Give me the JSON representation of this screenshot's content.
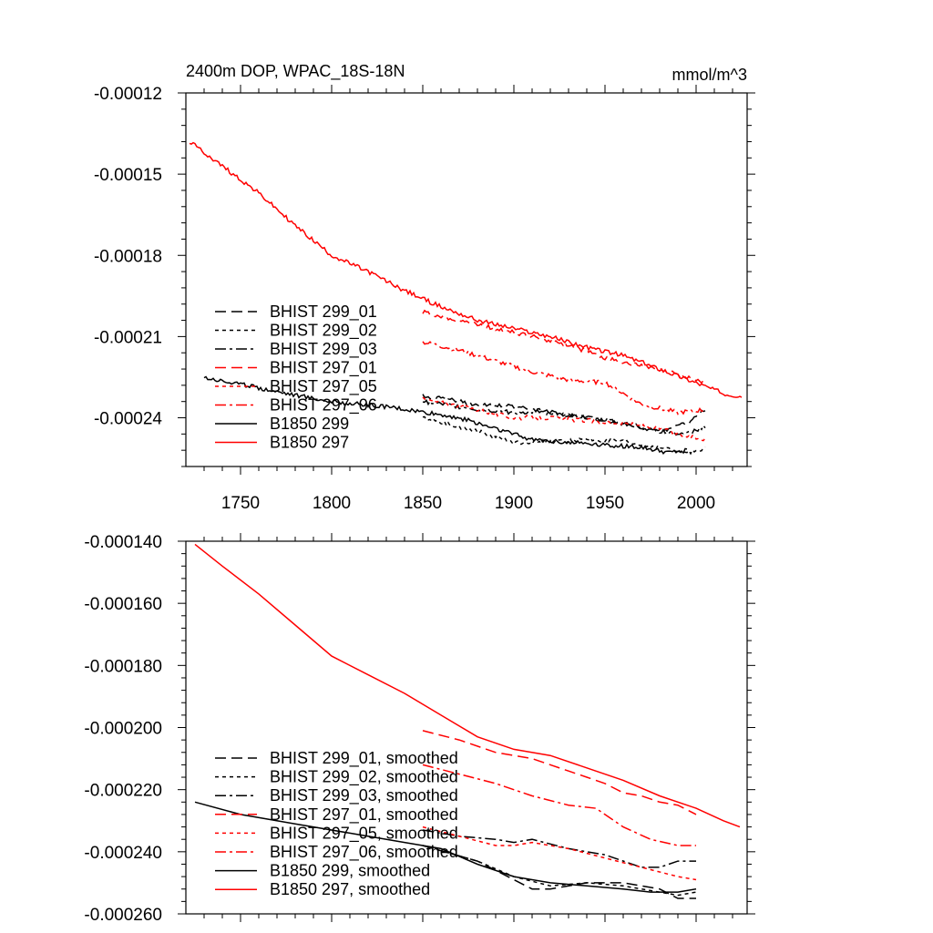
{
  "chart_data": [
    {
      "type": "line",
      "title": "2400m DOP, WPAC_18S-18N",
      "units": "mmol/m^3",
      "xlabel": "",
      "ylabel": "",
      "xlim": [
        1720,
        2028
      ],
      "ylim": [
        -0.000258,
        -0.00012
      ],
      "xticks": [
        1750,
        1800,
        1850,
        1900,
        1950,
        2000
      ],
      "xtick_labels": [
        "1750",
        "1800",
        "1850",
        "1900",
        "1950",
        "2000"
      ],
      "yticks": [
        -0.00012,
        -0.00015,
        -0.00018,
        -0.00021,
        -0.00024
      ],
      "ytick_labels": [
        "-0.00012",
        "-0.00015",
        "-0.00018",
        "-0.00021",
        "-0.00024"
      ],
      "legend_position": "lower-left",
      "noisy": true,
      "series": [
        {
          "name": "BHIST 299_01",
          "color": "#000000",
          "dash": "dash",
          "x": [
            1850,
            1880,
            1900,
            1920,
            1940,
            1960,
            1980,
            1995,
            2005
          ],
          "y": [
            -0.000232,
            -0.000235,
            -0.000236,
            -0.000238,
            -0.00024,
            -0.000242,
            -0.000245,
            -0.000242,
            -0.000237
          ]
        },
        {
          "name": "BHIST 299_02",
          "color": "#000000",
          "dash": "dot",
          "x": [
            1850,
            1880,
            1900,
            1920,
            1940,
            1960,
            1980,
            1995,
            2005
          ],
          "y": [
            -0.00024,
            -0.000245,
            -0.000249,
            -0.000249,
            -0.000248,
            -0.000249,
            -0.000251,
            -0.000253,
            -0.000251
          ]
        },
        {
          "name": "BHIST 299_03",
          "color": "#000000",
          "dash": "dashdot",
          "x": [
            1850,
            1880,
            1900,
            1920,
            1940,
            1960,
            1980,
            1995,
            2005
          ],
          "y": [
            -0.000234,
            -0.000237,
            -0.000238,
            -0.000238,
            -0.00024,
            -0.000242,
            -0.000245,
            -0.000246,
            -0.000243
          ]
        },
        {
          "name": "BHIST 297_01",
          "color": "#ff0000",
          "dash": "dash",
          "x": [
            1850,
            1870,
            1890,
            1910,
            1930,
            1950,
            1970,
            1990,
            2005
          ],
          "y": [
            -0.000201,
            -0.000204,
            -0.000207,
            -0.00021,
            -0.000213,
            -0.000218,
            -0.000221,
            -0.000224,
            -0.000227
          ]
        },
        {
          "name": "BHIST 297_05",
          "color": "#ff0000",
          "dash": "dot",
          "x": [
            1850,
            1880,
            1900,
            1920,
            1940,
            1960,
            1980,
            1995,
            2005
          ],
          "y": [
            -0.000233,
            -0.000237,
            -0.00024,
            -0.00024,
            -0.000241,
            -0.000242,
            -0.000244,
            -0.000247,
            -0.000248
          ]
        },
        {
          "name": "BHIST 297_06",
          "color": "#ff0000",
          "dash": "dashdot",
          "x": [
            1850,
            1870,
            1890,
            1910,
            1930,
            1950,
            1970,
            1990,
            2005
          ],
          "y": [
            -0.000212,
            -0.000215,
            -0.000219,
            -0.000223,
            -0.000226,
            -0.000227,
            -0.000235,
            -0.000238,
            -0.000237
          ]
        },
        {
          "name": "B1850 299",
          "color": "#000000",
          "dash": "solid",
          "x": [
            1730,
            1760,
            1800,
            1830,
            1850,
            1870,
            1890,
            1910,
            1930,
            1950,
            1970,
            1985,
            1995
          ],
          "y": [
            -0.000225,
            -0.000229,
            -0.000234,
            -0.000236,
            -0.000238,
            -0.00024,
            -0.000244,
            -0.000248,
            -0.000249,
            -0.00025,
            -0.000251,
            -0.000253,
            -0.000252
          ]
        },
        {
          "name": "B1850 297",
          "color": "#ff0000",
          "dash": "solid",
          "x": [
            1722,
            1740,
            1760,
            1780,
            1800,
            1820,
            1840,
            1860,
            1880,
            1900,
            1920,
            1940,
            1960,
            1980,
            2000,
            2015,
            2025
          ],
          "y": [
            -0.000138,
            -0.000147,
            -0.000157,
            -0.000169,
            -0.00018,
            -0.000186,
            -0.000193,
            -0.000199,
            -0.000204,
            -0.000207,
            -0.00021,
            -0.000214,
            -0.000217,
            -0.000222,
            -0.000227,
            -0.000231,
            -0.000232
          ]
        }
      ]
    },
    {
      "type": "line",
      "title": "",
      "xlabel": "",
      "ylabel": "",
      "xlim": [
        1720,
        2028
      ],
      "ylim": [
        -0.00026,
        -0.00014
      ],
      "xticks": [
        1750,
        1800,
        1850,
        1900,
        1950,
        2000
      ],
      "yticks": [
        -0.00014,
        -0.00016,
        -0.00018,
        -0.0002,
        -0.00022,
        -0.00024,
        -0.00026
      ],
      "ytick_labels": [
        "-0.000140",
        "-0.000160",
        "-0.000180",
        "-0.000200",
        "-0.000220",
        "-0.000240",
        "-0.000260"
      ],
      "legend_position": "lower-left",
      "noisy": false,
      "series": [
        {
          "name": "BHIST 299_01, smoothed",
          "color": "#000000",
          "dash": "dash",
          "x": [
            1850,
            1880,
            1900,
            1910,
            1920,
            1940,
            1960,
            1980,
            1990,
            2000
          ],
          "y": [
            -0.000238,
            -0.000243,
            -0.000249,
            -0.000252,
            -0.000252,
            -0.00025,
            -0.00025,
            -0.000252,
            -0.000255,
            -0.000255
          ]
        },
        {
          "name": "BHIST 299_02, smoothed",
          "color": "#000000",
          "dash": "dot",
          "x": [
            1850,
            1880,
            1900,
            1920,
            1940,
            1960,
            1980,
            1990,
            2000
          ],
          "y": [
            -0.000238,
            -0.000243,
            -0.000248,
            -0.000251,
            -0.00025,
            -0.000251,
            -0.000253,
            -0.000254,
            -0.000253
          ]
        },
        {
          "name": "BHIST 299_03, smoothed",
          "color": "#000000",
          "dash": "dashdot",
          "x": [
            1850,
            1870,
            1890,
            1900,
            1910,
            1930,
            1950,
            1970,
            1980,
            1990,
            2000
          ],
          "y": [
            -0.000233,
            -0.000235,
            -0.000236,
            -0.000237,
            -0.000236,
            -0.000239,
            -0.000241,
            -0.000245,
            -0.000245,
            -0.000243,
            -0.000243
          ]
        },
        {
          "name": "BHIST 297_01, smoothed",
          "color": "#ff0000",
          "dash": "dash",
          "x": [
            1850,
            1870,
            1890,
            1900,
            1910,
            1920,
            1930,
            1940,
            1950,
            1960,
            1970,
            1980,
            1990,
            2000
          ],
          "y": [
            -0.000201,
            -0.000204,
            -0.000208,
            -0.000209,
            -0.00021,
            -0.000212,
            -0.000214,
            -0.000216,
            -0.000218,
            -0.000221,
            -0.000222,
            -0.000224,
            -0.000225,
            -0.000228
          ]
        },
        {
          "name": "BHIST 297_05, smoothed",
          "color": "#ff0000",
          "dash": "dot",
          "x": [
            1850,
            1870,
            1890,
            1900,
            1910,
            1930,
            1950,
            1970,
            1990,
            2000
          ],
          "y": [
            -0.000232,
            -0.000235,
            -0.000238,
            -0.000238,
            -0.000237,
            -0.000239,
            -0.000242,
            -0.000245,
            -0.000248,
            -0.000249
          ]
        },
        {
          "name": "BHIST 297_06, smoothed",
          "color": "#ff0000",
          "dash": "dashdot",
          "x": [
            1850,
            1870,
            1890,
            1910,
            1930,
            1945,
            1960,
            1975,
            1990,
            2000
          ],
          "y": [
            -0.000212,
            -0.000215,
            -0.000218,
            -0.000222,
            -0.000225,
            -0.000226,
            -0.000232,
            -0.000236,
            -0.000238,
            -0.000238
          ]
        },
        {
          "name": "B1850 299, smoothed",
          "color": "#000000",
          "dash": "solid",
          "x": [
            1725,
            1750,
            1780,
            1810,
            1840,
            1860,
            1880,
            1900,
            1920,
            1940,
            1960,
            1975,
            1990,
            2000
          ],
          "y": [
            -0.000224,
            -0.000228,
            -0.000231,
            -0.000234,
            -0.000237,
            -0.000239,
            -0.000244,
            -0.000248,
            -0.00025,
            -0.000251,
            -0.000252,
            -0.000253,
            -0.000253,
            -0.000252
          ]
        },
        {
          "name": "B1850 297, smoothed",
          "color": "#ff0000",
          "dash": "solid",
          "x": [
            1725,
            1740,
            1760,
            1780,
            1800,
            1820,
            1840,
            1860,
            1880,
            1900,
            1920,
            1940,
            1960,
            1980,
            2000,
            2015,
            2024
          ],
          "y": [
            -0.000141,
            -0.000148,
            -0.000157,
            -0.000167,
            -0.000177,
            -0.000183,
            -0.000189,
            -0.000196,
            -0.000203,
            -0.000207,
            -0.000209,
            -0.000213,
            -0.000217,
            -0.000222,
            -0.000226,
            -0.00023,
            -0.000232
          ]
        }
      ]
    }
  ]
}
